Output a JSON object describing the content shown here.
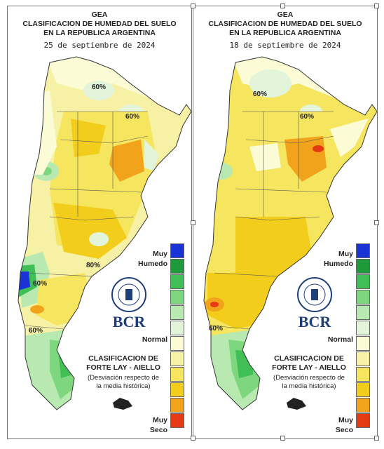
{
  "maps": [
    {
      "title_line1": "GEA",
      "title_line2": "CLASIFICACION DE HUMEDAD DEL SUELO",
      "title_line3": "EN LA REPUBLICA ARGENTINA",
      "date": "25 de septiembre de 2024",
      "contour_labels": [
        "60%",
        "60%",
        "60%",
        "80%",
        "60%"
      ]
    },
    {
      "title_line1": "GEA",
      "title_line2": "CLASIFICACION DE HUMEDAD DEL SUELO",
      "title_line3": "EN LA REPUBLICA ARGENTINA",
      "date": "18 de septiembre de 2024",
      "contour_labels": [
        "60%",
        "60%",
        "60%"
      ]
    }
  ],
  "legend": {
    "top_label": "Muy\nHumedo",
    "middle_label": "Normal",
    "bottom_label": "Muy\nSeco",
    "colors": [
      "#1a33d6",
      "#1f9a3a",
      "#3fbf55",
      "#7ed77e",
      "#b7e9b1",
      "#e2f5db",
      "#fbfbd6",
      "#f7f1a6",
      "#f6e55e",
      "#f3cd1c",
      "#f0a31b",
      "#e53b14"
    ]
  },
  "classification_title_line1": "CLASIFICACION DE",
  "classification_title_line2": "FORTE LAY - AIELLO",
  "classification_sub_line1": "(Desviación respecto de",
  "classification_sub_line2": "la media histórica)",
  "logo_text": "BCR",
  "seal_text": "BOLSA DE COMERCIO DE ROSARIO"
}
